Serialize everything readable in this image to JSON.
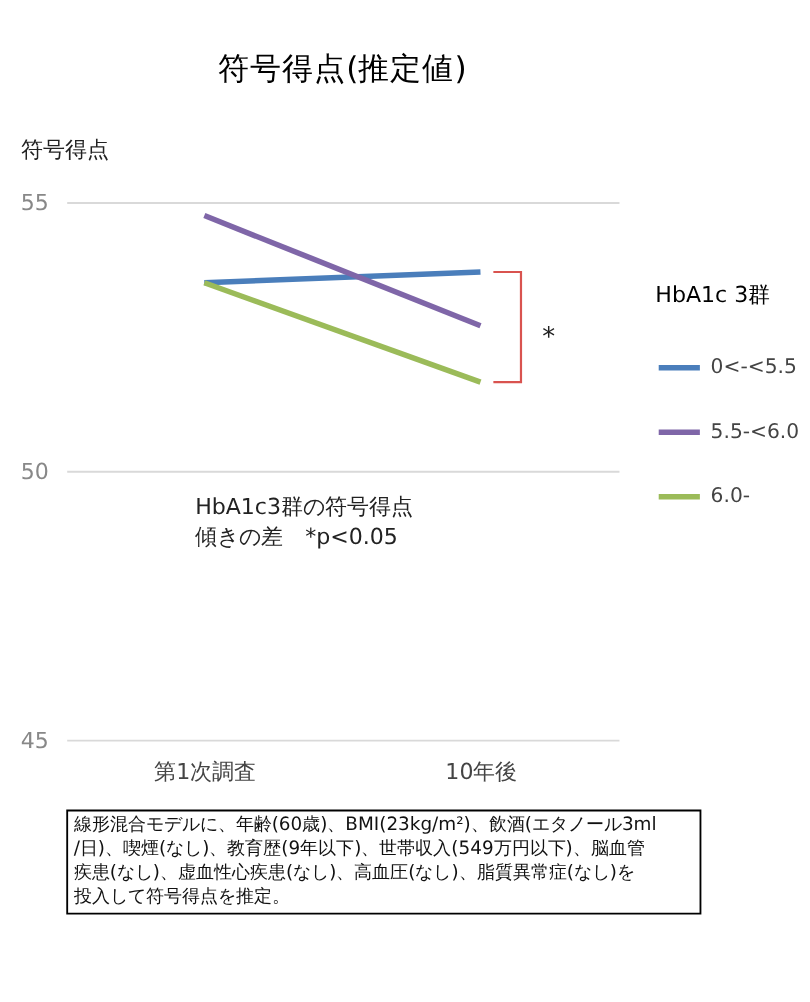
{
  "chart_data": {
    "type": "line",
    "title": "符号得点(推定値)",
    "ylabel": "符号得点",
    "legend_title": "HbA1c  3群",
    "categories": [
      "第1次調査",
      "10年後"
    ],
    "series": [
      {
        "name": "0<-<5.5",
        "color": "#4a7ebb",
        "values": [
          53.5,
          53.7
        ]
      },
      {
        "name": "5.5-<6.0",
        "color": "#7f66a8",
        "values": [
          54.75,
          52.7
        ]
      },
      {
        "name": "6.0-",
        "color": "#9bbb59",
        "values": [
          53.5,
          51.65
        ]
      }
    ],
    "ylim": [
      45,
      55
    ],
    "yticks": [
      45,
      50,
      55
    ],
    "grid": "y",
    "legend": "right",
    "marker": "none",
    "line_style": "solid",
    "annotations": [
      "*",
      "HbA1c3群の符号得点傾きの差　*p<0.05",
      "線形混合モデルに、年齢(60歳)、BMI(23kg/m²)、飲酒(エタノール3ml/日)、喫煙(なし)、教育歴(9年以下)、世帯収入(549万円以下)、脳血管疾患(なし)、虚血性心疾患(なし)、高血圧(なし)、脂質異常症(なし)を投入して符号得点を推定。"
    ]
  }
}
